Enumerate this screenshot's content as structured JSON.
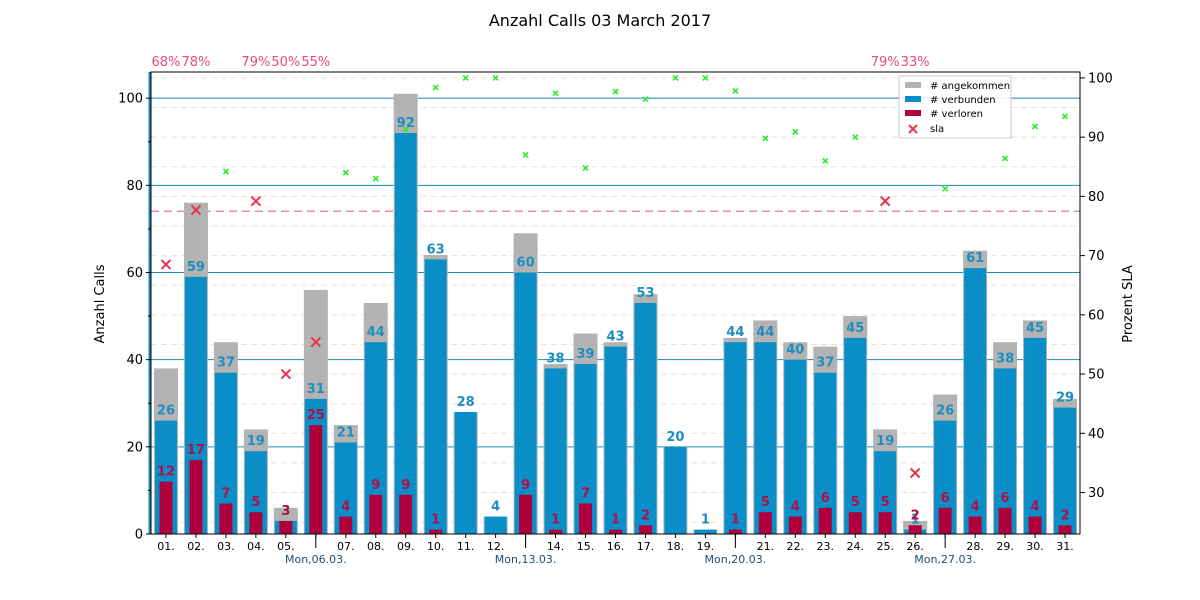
{
  "chart_data": {
    "type": "bar",
    "title": "Anzahl Calls 03 March 2017",
    "ylabel": "Anzahl Calls",
    "y2label": "Prozent SLA",
    "ylim": [
      0,
      106
    ],
    "y2lim": [
      23,
      101
    ],
    "yticks": [
      0,
      20,
      40,
      60,
      80,
      100
    ],
    "y2ticks": [
      30,
      40,
      50,
      60,
      70,
      80,
      90,
      100
    ],
    "sla_target": 77.5,
    "categories": [
      "01.",
      "02.",
      "03.",
      "04.",
      "05.",
      "06.",
      "07.",
      "08.",
      "09.",
      "10.",
      "11.",
      "12.",
      "13.",
      "14.",
      "15.",
      "16.",
      "17.",
      "18.",
      "19.",
      "20.",
      "21.",
      "22.",
      "23.",
      "24.",
      "25.",
      "26.",
      "27.",
      "28.",
      "29.",
      "30.",
      "31."
    ],
    "tick_labels": [
      "01.",
      "02.",
      "03.",
      "04.",
      "05.",
      "",
      "07.",
      "08.",
      "09.",
      "10.",
      "11.",
      "12.",
      "",
      "14.",
      "15.",
      "16.",
      "17.",
      "18.",
      "19.",
      "",
      "21.",
      "22.",
      "23.",
      "24.",
      "25.",
      "26.",
      "",
      "28.",
      "29.",
      "30.",
      "31."
    ],
    "week_labels": [
      {
        "index": 5,
        "text": "Mon,06.03."
      },
      {
        "index": 12,
        "text": "Mon,13.03."
      },
      {
        "index": 19,
        "text": "Mon,20.03."
      },
      {
        "index": 26,
        "text": "Mon,27.03."
      }
    ],
    "series": [
      {
        "name": "# angekommen",
        "color": "#b3b3b3",
        "values": [
          38,
          76,
          44,
          24,
          6,
          56,
          25,
          53,
          101,
          64,
          28,
          4,
          69,
          39,
          46,
          44,
          55,
          20,
          1,
          45,
          49,
          44,
          43,
          50,
          24,
          3,
          32,
          65,
          44,
          49,
          31
        ]
      },
      {
        "name": "# verbunden",
        "color": "#0a8ec8",
        "values": [
          26,
          59,
          37,
          19,
          3,
          31,
          21,
          44,
          92,
          63,
          28,
          4,
          60,
          38,
          39,
          43,
          53,
          20,
          1,
          44,
          44,
          40,
          37,
          45,
          19,
          1,
          26,
          61,
          38,
          45,
          29
        ]
      },
      {
        "name": "# verloren",
        "color": "#b0003c",
        "values": [
          12,
          17,
          7,
          5,
          3,
          25,
          4,
          9,
          9,
          1,
          0,
          0,
          9,
          1,
          7,
          1,
          2,
          0,
          0,
          1,
          5,
          4,
          6,
          5,
          5,
          2,
          6,
          4,
          6,
          4,
          2
        ]
      }
    ],
    "connected_labels": [
      26,
      59,
      37,
      19,
      3,
      31,
      21,
      44,
      92,
      63,
      28,
      4,
      60,
      38,
      39,
      43,
      53,
      20,
      1,
      44,
      44,
      40,
      37,
      45,
      19,
      1,
      26,
      61,
      38,
      45,
      29
    ],
    "lost_labels": [
      12,
      17,
      7,
      5,
      3,
      25,
      4,
      9,
      9,
      1,
      null,
      null,
      9,
      1,
      7,
      1,
      2,
      null,
      null,
      1,
      5,
      4,
      6,
      5,
      5,
      2,
      6,
      4,
      6,
      4,
      2
    ],
    "sla": {
      "name": "sla",
      "values": [
        68.5,
        77.7,
        84.2,
        79.2,
        50.0,
        55.4,
        84.0,
        83.0,
        91.3,
        98.4,
        100,
        100,
        87.0,
        97.4,
        84.8,
        97.7,
        96.4,
        100,
        100,
        97.8,
        89.8,
        90.9,
        86.0,
        90.0,
        79.2,
        33.3,
        81.3,
        93.8,
        86.4,
        91.8,
        93.5
      ],
      "critical_color": "#e8344e",
      "ok_color": "#2ee82e",
      "threshold": 79.5
    },
    "top_annotations": [
      {
        "index": 0,
        "text": "68%"
      },
      {
        "index": 1,
        "text": "78%"
      },
      {
        "index": 3,
        "text": "79%"
      },
      {
        "index": 4,
        "text": "50%"
      },
      {
        "index": 5,
        "text": "55%"
      },
      {
        "index": 24,
        "text": "79%"
      },
      {
        "index": 25,
        "text": "33%"
      }
    ],
    "legend_position": "top-right",
    "grid": true
  }
}
